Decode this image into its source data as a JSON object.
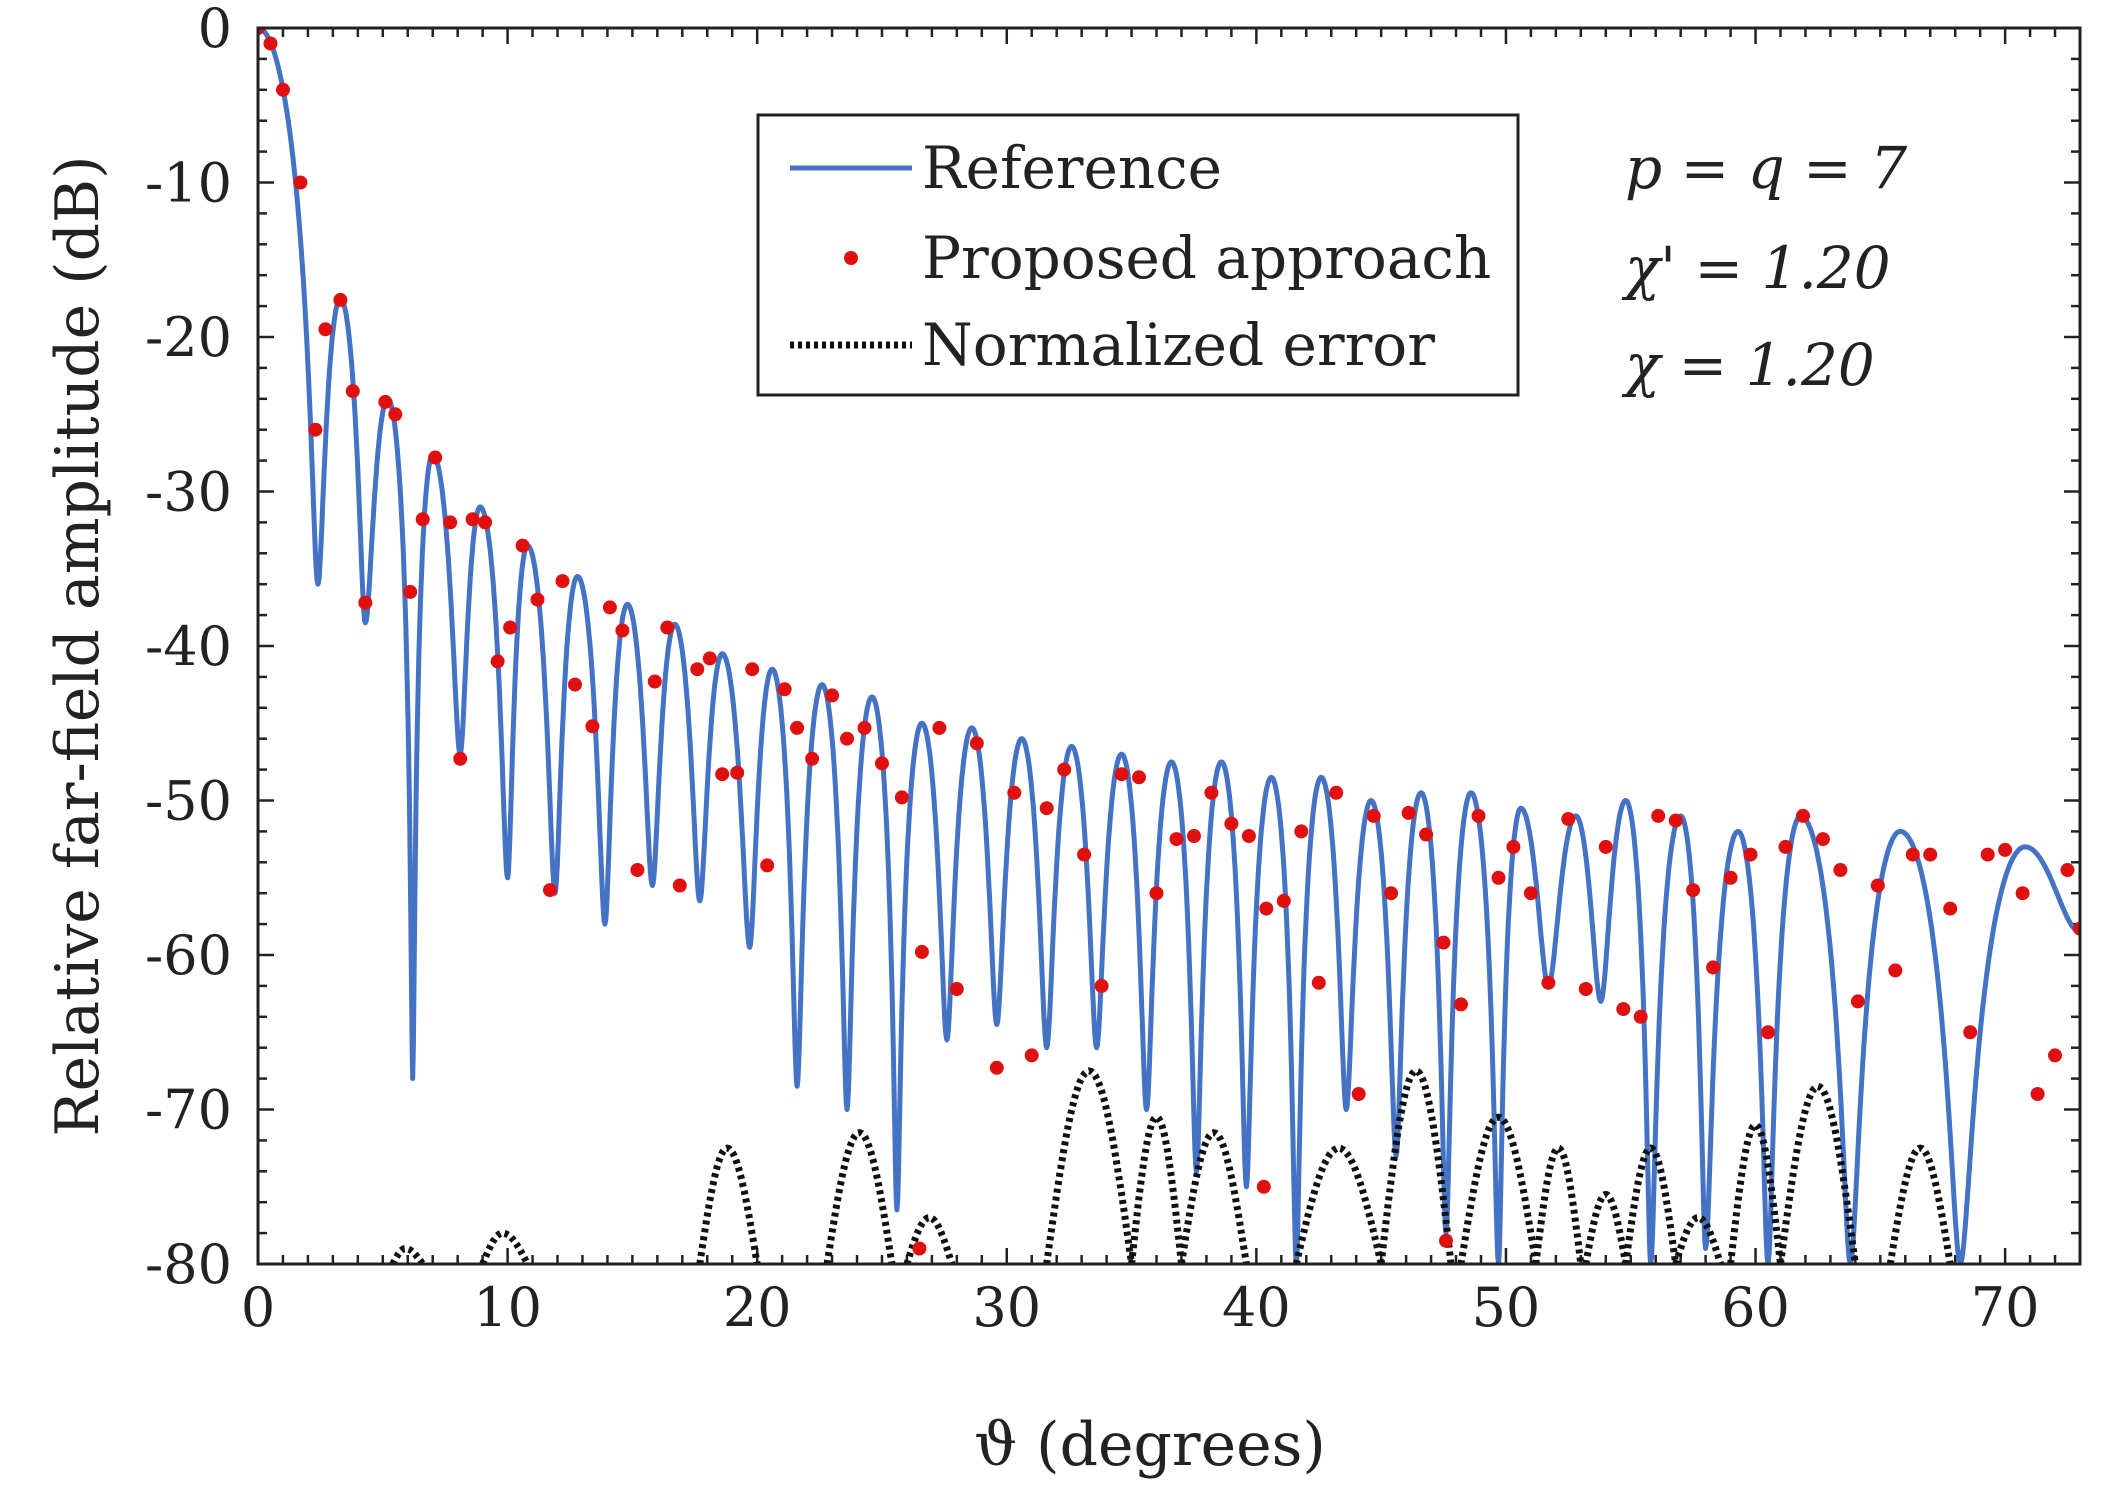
{
  "chart_data": {
    "type": "line",
    "title": "",
    "xlabel": "ϑ (degrees)",
    "ylabel": "Relative far-field amplitude (dB)",
    "xlim": [
      0,
      73
    ],
    "ylim": [
      -80,
      0
    ],
    "x_ticks": [
      0,
      10,
      20,
      30,
      40,
      50,
      60,
      70
    ],
    "x_tick_labels": [
      "0",
      "10",
      "20",
      "30",
      "40",
      "50",
      "60",
      "70"
    ],
    "y_ticks": [
      0,
      -10,
      -20,
      -30,
      -40,
      -50,
      -60,
      -70,
      -80
    ],
    "y_tick_labels": [
      "0",
      "-10",
      "-20",
      "-30",
      "-40",
      "-50",
      "-60",
      "-70",
      "-80"
    ],
    "grid": false,
    "legend_position": "top-center",
    "annotations": [
      "p = q = 7",
      "χ' = 1.20",
      "χ = 1.20"
    ],
    "series": [
      {
        "name": "Reference",
        "style": "solid-line",
        "color": "#4472c4",
        "lobe_peaks_x": [
          0,
          3.3,
          5.2,
          7.0,
          8.9,
          10.8,
          12.8,
          14.8,
          16.7,
          18.6,
          20.6,
          22.6,
          24.6,
          26.6,
          28.6,
          30.6,
          32.6,
          34.6,
          36.6,
          38.6,
          40.6,
          42.6,
          44.6,
          46.6,
          48.6,
          50.6,
          52.8,
          54.8,
          57.0,
          59.3,
          61.8,
          65.8,
          70.8
        ],
        "lobe_peaks_y": [
          0,
          -17.5,
          -24.0,
          -27.6,
          -31.0,
          -33.5,
          -35.5,
          -37.3,
          -38.6,
          -40.5,
          -41.5,
          -42.5,
          -43.3,
          -45.0,
          -45.3,
          -46.0,
          -46.5,
          -47.0,
          -47.5,
          -47.5,
          -48.5,
          -48.5,
          -50.0,
          -49.5,
          -49.5,
          -50.5,
          -51.0,
          -50.0,
          -51.0,
          -52.0,
          -51.0,
          -52.0,
          -53.0
        ],
        "nulls_x": [
          2.4,
          4.3,
          6.2,
          8.1,
          10.0,
          11.9,
          13.9,
          15.8,
          17.7,
          19.7,
          21.6,
          23.6,
          25.6,
          27.6,
          29.6,
          31.6,
          33.6,
          35.6,
          37.6,
          39.6,
          41.6,
          43.6,
          45.6,
          47.6,
          49.7,
          51.7,
          53.8,
          55.8,
          58.0,
          60.5,
          63.8,
          68.2
        ],
        "nulls_y": [
          -36,
          -38.5,
          -68,
          -47,
          -55,
          -56,
          -58,
          -55.5,
          -56.5,
          -59.5,
          -68.5,
          -70,
          -76.5,
          -65.5,
          -64.5,
          -66,
          -66,
          -70,
          -74,
          -75,
          -80,
          -70,
          -73,
          -78,
          -80,
          -62,
          -63,
          -80,
          -79,
          -80,
          -80,
          -80
        ],
        "end_point": [
          73,
          -58.5
        ]
      },
      {
        "name": "Proposed approach",
        "style": "red-dots",
        "color": "#e01010",
        "x": [
          0.0,
          0.5,
          1.0,
          1.7,
          2.3,
          2.7,
          3.3,
          3.8,
          4.3,
          5.1,
          5.5,
          6.1,
          6.6,
          7.1,
          7.7,
          8.1,
          8.6,
          9.1,
          9.6,
          10.1,
          10.6,
          11.2,
          11.7,
          12.2,
          12.7,
          13.4,
          14.1,
          14.6,
          15.2,
          15.9,
          16.4,
          16.9,
          17.6,
          18.1,
          18.6,
          19.2,
          19.8,
          20.4,
          21.1,
          21.6,
          22.2,
          23.0,
          23.6,
          24.3,
          25.0,
          25.8,
          26.6,
          27.3,
          28.0,
          28.8,
          29.6,
          30.3,
          31.0,
          31.6,
          32.3,
          33.1,
          33.8,
          34.6,
          35.3,
          36.0,
          36.8,
          37.5,
          38.2,
          39.0,
          39.7,
          40.4,
          41.1,
          41.8,
          42.5,
          43.2,
          44.1,
          44.7,
          45.4,
          46.1,
          46.8,
          47.5,
          48.2,
          48.9,
          49.7,
          50.3,
          51.0,
          51.7,
          52.5,
          53.2,
          54.0,
          54.7,
          55.4,
          56.1,
          56.8,
          57.5,
          58.3,
          59.0,
          59.8,
          60.5,
          61.2,
          61.9,
          62.7,
          63.4,
          64.1,
          64.9,
          65.6,
          66.3,
          67.0,
          67.8,
          68.6,
          69.3,
          70.0,
          70.7,
          71.3,
          72.0,
          72.5,
          73.0
        ],
        "y": [
          0.0,
          -1.0,
          -4.0,
          -10.0,
          -26.0,
          -19.5,
          -17.6,
          -23.5,
          -37.2,
          -24.2,
          -25.0,
          -36.5,
          -31.8,
          -27.8,
          -32.0,
          -47.3,
          -31.8,
          -32.0,
          -41.0,
          -38.8,
          -33.5,
          -37.0,
          -55.8,
          -35.8,
          -42.5,
          -45.2,
          -37.5,
          -39.0,
          -54.5,
          -42.3,
          -38.8,
          -55.5,
          -41.5,
          -40.8,
          -48.3,
          -48.2,
          -41.5,
          -54.2,
          -42.8,
          -45.3,
          -47.3,
          -43.2,
          -46.0,
          -45.3,
          -47.6,
          -49.8,
          -59.8,
          -45.3,
          -62.2,
          -46.3,
          -67.3,
          -49.5,
          -66.5,
          -50.5,
          -48.0,
          -53.5,
          -62.0,
          -48.3,
          -48.5,
          -56.0,
          -52.5,
          -52.3,
          -49.5,
          -51.5,
          -52.3,
          -57.0,
          -56.5,
          -52.0,
          -61.8,
          -49.5,
          -69.0,
          -51.0,
          -56.0,
          -50.8,
          -52.2,
          -59.2,
          -63.2,
          -51.0,
          -55.0,
          -53.0,
          -56.0,
          -61.8,
          -51.2,
          -62.2,
          -53.0,
          -63.5,
          -64.0,
          -51.0,
          -51.3,
          -55.8,
          -60.8,
          -55.0,
          -53.5,
          -65.0,
          -53.0,
          -51.0,
          -52.5,
          -54.5,
          -63.0,
          -55.5,
          -61.0,
          -53.5,
          -53.5,
          -57.0,
          -65.0,
          -53.5,
          -53.2,
          -56.0,
          -69.0,
          -66.5,
          -54.5,
          -58.3
        ],
        "x_extra": [
          40.3,
          47.6,
          26.5
        ],
        "y_extra": [
          -75.0,
          -78.5,
          -79.0
        ]
      },
      {
        "name": "Normalized error",
        "style": "dotted-line",
        "color": "#111111",
        "lobes": [
          {
            "x_start": 5.4,
            "x_end": 6.6,
            "peak_x": 5.9,
            "peak_y": -79.0
          },
          {
            "x_start": 9.0,
            "x_end": 10.8,
            "peak_x": 9.8,
            "peak_y": -78.0
          },
          {
            "x_start": 17.7,
            "x_end": 20.0,
            "peak_x": 18.8,
            "peak_y": -72.5
          },
          {
            "x_start": 22.8,
            "x_end": 25.4,
            "peak_x": 24.1,
            "peak_y": -71.5
          },
          {
            "x_start": 26.0,
            "x_end": 27.8,
            "peak_x": 26.9,
            "peak_y": -77.0
          },
          {
            "x_start": 31.6,
            "x_end": 35.0,
            "peak_x": 33.3,
            "peak_y": -67.5
          },
          {
            "x_start": 35.0,
            "x_end": 37.0,
            "peak_x": 36.0,
            "peak_y": -70.5
          },
          {
            "x_start": 37.0,
            "x_end": 39.6,
            "peak_x": 38.3,
            "peak_y": -71.5
          },
          {
            "x_start": 41.6,
            "x_end": 45.0,
            "peak_x": 43.3,
            "peak_y": -72.5
          },
          {
            "x_start": 45.0,
            "x_end": 47.8,
            "peak_x": 46.4,
            "peak_y": -67.5
          },
          {
            "x_start": 48.2,
            "x_end": 51.2,
            "peak_x": 49.7,
            "peak_y": -70.5
          },
          {
            "x_start": 51.2,
            "x_end": 53.0,
            "peak_x": 52.1,
            "peak_y": -72.5
          },
          {
            "x_start": 53.2,
            "x_end": 54.8,
            "peak_x": 54.0,
            "peak_y": -75.5
          },
          {
            "x_start": 54.8,
            "x_end": 56.8,
            "peak_x": 55.8,
            "peak_y": -72.5
          },
          {
            "x_start": 56.8,
            "x_end": 58.6,
            "peak_x": 57.7,
            "peak_y": -77.0
          },
          {
            "x_start": 59.0,
            "x_end": 61.0,
            "peak_x": 60.0,
            "peak_y": -71.0
          },
          {
            "x_start": 61.0,
            "x_end": 64.0,
            "peak_x": 62.5,
            "peak_y": -68.5
          },
          {
            "x_start": 65.4,
            "x_end": 67.8,
            "peak_x": 66.6,
            "peak_y": -72.5
          }
        ]
      }
    ]
  }
}
